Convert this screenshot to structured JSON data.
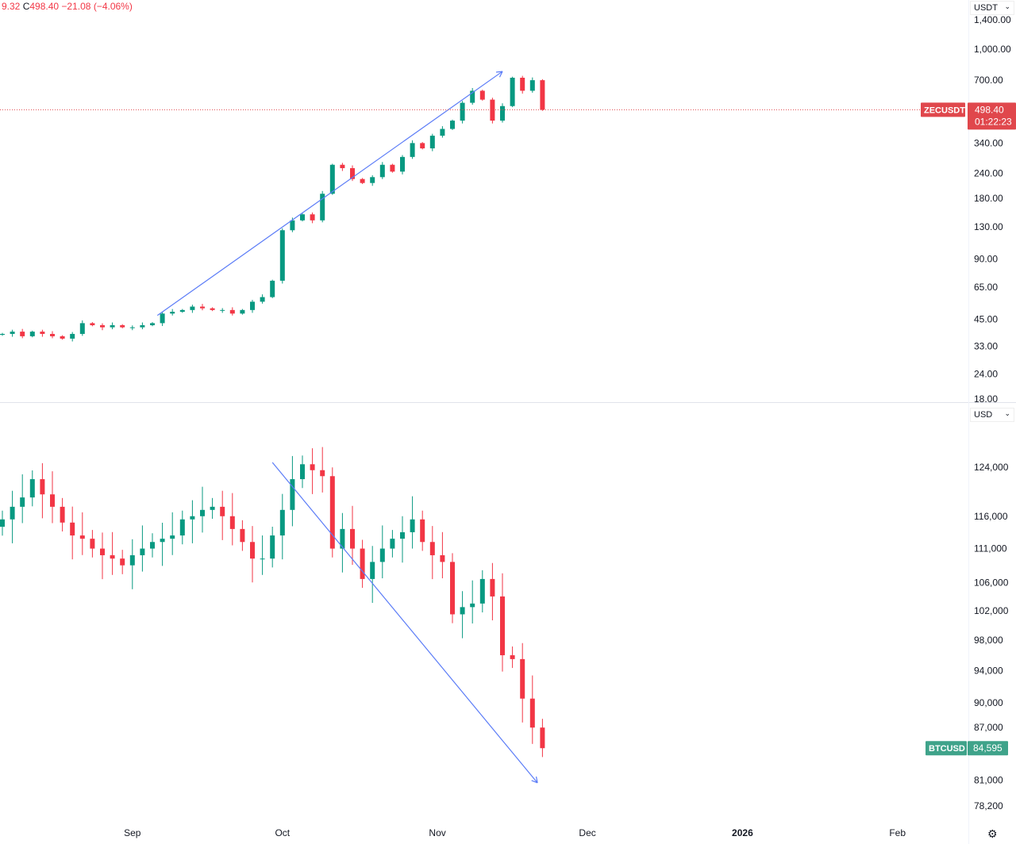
{
  "header": {
    "open_fragment": "9.32",
    "close_label": "C",
    "close": "498.40",
    "change": "−21.08",
    "change_pct": "(−4.06%)"
  },
  "colors": {
    "up": "#089981",
    "down": "#f23645",
    "trendline": "#5b7cf7",
    "zec_label": "#e0474c",
    "btc_label": "#3fa38a"
  },
  "chart_data": [
    {
      "type": "candlestick",
      "symbol": "ZECUSDT",
      "currency": "USDT",
      "scale": "log",
      "ylim": [
        18,
        1400
      ],
      "y_ticks": [
        "1,400.00",
        "1,000.00",
        "700.00",
        "340.00",
        "240.00",
        "180.00",
        "130.00",
        "90.00",
        "65.00",
        "45.00",
        "33.00",
        "24.00",
        "18.00"
      ],
      "last_price": "498.40",
      "countdown": "01:22:23",
      "closes": [
        38,
        39,
        37,
        39,
        38,
        37,
        36,
        38,
        43,
        42,
        41,
        42,
        41,
        41,
        42,
        43,
        48,
        49,
        50,
        52,
        51,
        50,
        50,
        48,
        50,
        55,
        58,
        70,
        125,
        140,
        150,
        140,
        190,
        265,
        255,
        225,
        215,
        230,
        265,
        245,
        290,
        340,
        320,
        370,
        400,
        440,
        540,
        620,
        560,
        440,
        520,
        720,
        620,
        700,
        498.4
      ],
      "trendline": {
        "from": {
          "date": "2025-09-06",
          "price": 47
        },
        "to": {
          "date": "2025-11-14",
          "price": 774
        }
      }
    },
    {
      "type": "candlestick",
      "symbol": "BTCUSD",
      "currency": "USD",
      "scale": "log",
      "ylim": [
        78200,
        124000
      ],
      "y_ticks": [
        "124,000",
        "116,000",
        "111,000",
        "106,000",
        "102,000",
        "98,000",
        "94,000",
        "90,000",
        "87,000",
        "81,000",
        "78,200"
      ],
      "last_price": "84,595",
      "closes": [
        115500,
        117500,
        119000,
        122000,
        119500,
        117500,
        115000,
        113000,
        112500,
        111000,
        110000,
        109500,
        108500,
        110000,
        111000,
        112000,
        112500,
        113000,
        115500,
        116000,
        117000,
        117500,
        116000,
        114000,
        112000,
        109500,
        109500,
        113000,
        117000,
        122000,
        124500,
        123500,
        122500,
        111000,
        114000,
        111000,
        106500,
        109000,
        111000,
        112500,
        113500,
        115500,
        112000,
        110000,
        109000,
        101500,
        102500,
        103000,
        106500,
        104000,
        96000,
        95500,
        90500,
        87000,
        84595
      ],
      "trendline": {
        "from": {
          "date": "2025-09-29",
          "price": 124800
        },
        "to": {
          "date": "2025-11-21",
          "price": 80700
        }
      }
    }
  ],
  "x_axis": {
    "first_date": "2025-08-06",
    "interval_days": 2,
    "ticks": [
      {
        "label": "Sep",
        "date": "2025-09-01"
      },
      {
        "label": "Oct",
        "date": "2025-10-01"
      },
      {
        "label": "Nov",
        "date": "2025-11-01"
      },
      {
        "label": "Dec",
        "date": "2025-12-01"
      },
      {
        "label": "2026",
        "date": "2026-01-01",
        "bold": true
      },
      {
        "label": "Feb",
        "date": "2026-02-01"
      }
    ]
  }
}
